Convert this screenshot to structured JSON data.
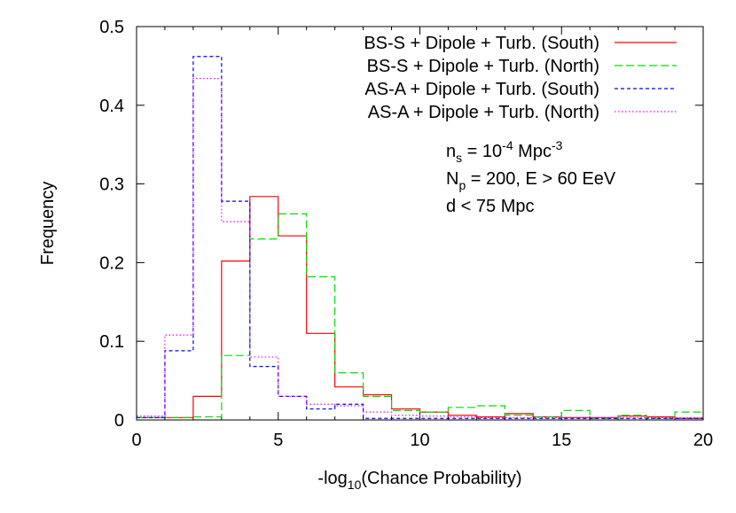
{
  "chart_data": {
    "type": "step",
    "xlabel": "-log",
    "xlabel_sub": "10",
    "xlabel_rest": "(Chance Probability)",
    "ylabel": "Frequency",
    "xlim": [
      0,
      20
    ],
    "ylim": [
      0,
      0.5
    ],
    "xticks": [
      0,
      5,
      10,
      15,
      20
    ],
    "yticks": [
      0,
      0.1,
      0.2,
      0.3,
      0.4,
      0.5
    ],
    "xtick_labels": [
      "0",
      "5",
      "10",
      "15",
      "20"
    ],
    "ytick_labels": [
      "0",
      "0.1",
      "0.2",
      "0.3",
      "0.4",
      "0.5"
    ],
    "bin_edges": [
      0,
      1,
      2,
      3,
      4,
      5,
      6,
      7,
      8,
      9,
      10,
      11,
      12,
      13,
      14,
      15,
      16,
      17,
      18,
      19,
      20
    ],
    "legend_position": "top-right",
    "series": [
      {
        "name": "BS-S + Dipole + Turb. (South)",
        "color": "#ff0000",
        "dash": "",
        "values": [
          0.003,
          0.003,
          0.03,
          0.202,
          0.284,
          0.234,
          0.11,
          0.042,
          0.032,
          0.014,
          0.01,
          0.006,
          0.004,
          0.008,
          0.004,
          0.003,
          0.003,
          0.005,
          0.004,
          0.002
        ]
      },
      {
        "name": "BS-S + Dipole + Turb. (North)",
        "color": "#00dd00",
        "dash": "9,4",
        "values": [
          0.003,
          0.003,
          0.004,
          0.082,
          0.23,
          0.262,
          0.182,
          0.06,
          0.03,
          0.012,
          0.01,
          0.016,
          0.018,
          0.006,
          0.004,
          0.012,
          0.002,
          0.006,
          0.002,
          0.01
        ]
      },
      {
        "name": "AS-A + Dipole + Turb. (South)",
        "color": "#0000ff",
        "dash": "4,3",
        "values": [
          0.003,
          0.088,
          0.462,
          0.278,
          0.068,
          0.03,
          0.014,
          0.02,
          0.002,
          0.002,
          0.002,
          0.002,
          0.002,
          0.002,
          0.002,
          0.002,
          0.002,
          0.002,
          0.002,
          0.002
        ]
      },
      {
        "name": "AS-A + Dipole + Turb. (North)",
        "color": "#ee00ee",
        "dash": "1.5,2.5",
        "values": [
          0.005,
          0.108,
          0.434,
          0.252,
          0.08,
          0.03,
          0.02,
          0.018,
          0.01,
          0.006,
          0.005,
          0.004,
          0.003,
          0.003,
          0.003,
          0.003,
          0.003,
          0.003,
          0.003,
          0.003
        ]
      }
    ],
    "annotations": [
      {
        "base": "n",
        "sub": "s",
        "mid": " = 10",
        "sup": "-4",
        "rest": " Mpc",
        "sup2": "-3"
      },
      {
        "base": "N",
        "sub": "p",
        "mid": " = 200, E > 60 EeV",
        "sup": "",
        "rest": "",
        "sup2": ""
      },
      {
        "base": "d < 75 Mpc",
        "sub": "",
        "mid": "",
        "sup": "",
        "rest": "",
        "sup2": ""
      }
    ]
  }
}
